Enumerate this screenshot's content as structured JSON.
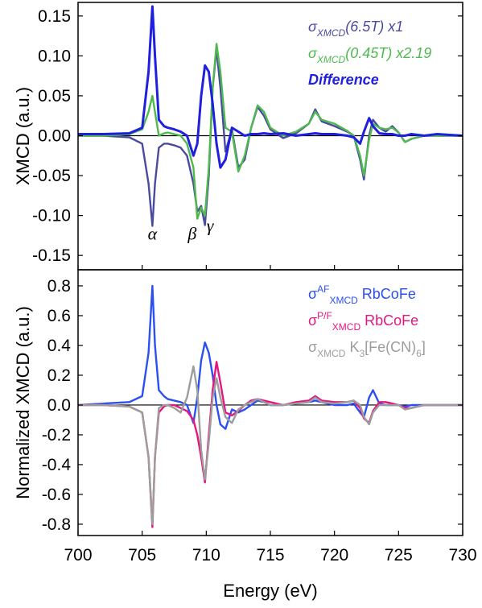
{
  "chart_data": [
    {
      "type": "line",
      "ylabel": "XMCD (a.u.)",
      "xlim": [
        700,
        730
      ],
      "xticks": [
        700,
        705,
        710,
        715,
        720,
        725,
        730
      ],
      "ylim": [
        -0.168,
        0.167
      ],
      "yticks": [
        0.15,
        {
          "value": 0.1,
          "label": "0.10"
        },
        0.05,
        {
          "value": 0,
          "label": "0.00"
        },
        -0.05,
        {
          "value": -0.1,
          "label": "-0.10"
        },
        -0.15
      ],
      "legend": "upper right",
      "legend_style": "italic",
      "x": [
        700,
        702,
        704,
        705,
        705.5,
        705.8,
        706,
        706.3,
        706.7,
        707,
        707.5,
        708,
        708.5,
        709,
        709.3,
        709.6,
        709.9,
        710.2,
        710.5,
        710.8,
        711.1,
        711.5,
        712,
        712.5,
        713,
        713.5,
        714,
        714.5,
        715,
        716,
        717,
        718,
        718.5,
        719,
        720,
        721,
        721.5,
        722,
        722.3,
        722.7,
        723,
        723.5,
        724,
        724.5,
        725,
        725.5,
        726,
        727,
        728,
        730
      ],
      "series": [
        {
          "name": [
            {
              "text": "σ"
            },
            {
              "text": "XMCD",
              "sub": true
            },
            {
              "text": "(6.5T) x1"
            }
          ],
          "color": "#4a4a9e",
          "values": [
            0,
            0,
            -0.002,
            -0.01,
            -0.06,
            -0.113,
            -0.06,
            -0.015,
            -0.01,
            -0.01,
            -0.012,
            -0.015,
            -0.025,
            -0.06,
            -0.095,
            -0.088,
            -0.112,
            -0.05,
            0.06,
            0.108,
            0.06,
            -0.02,
            0.008,
            -0.04,
            -0.03,
            0.01,
            0.036,
            0.025,
            0.008,
            -0.003,
            0.003,
            0.015,
            0.033,
            0.018,
            0.012,
            0.005,
            0.0,
            -0.03,
            -0.055,
            0.0,
            0.02,
            0.01,
            0.005,
            0.012,
            0.004,
            -0.008,
            -0.004,
            0,
            0,
            0
          ]
        },
        {
          "name": [
            {
              "text": "σ"
            },
            {
              "text": "XMCD",
              "sub": true
            },
            {
              "text": "(0.45T) x2.19"
            }
          ],
          "color": "#4fb94f",
          "values": [
            0,
            0,
            0.002,
            0.008,
            0.03,
            0.05,
            0.03,
            0.0,
            0.003,
            0.004,
            0.002,
            0.0,
            -0.01,
            -0.04,
            -0.104,
            -0.09,
            -0.1,
            -0.04,
            0.06,
            0.115,
            0.08,
            0.01,
            0.005,
            -0.045,
            -0.025,
            0.01,
            0.038,
            0.03,
            0.01,
            0.0,
            0.005,
            0.015,
            0.03,
            0.02,
            0.015,
            0.006,
            0.0,
            -0.025,
            -0.05,
            -0.005,
            0.015,
            0.01,
            0.008,
            0.01,
            0.004,
            -0.008,
            -0.004,
            0,
            0,
            0
          ]
        },
        {
          "name": [
            {
              "text": "Difference"
            }
          ],
          "color": "#1f1fe0",
          "bold": true,
          "values": [
            0.002,
            0.002,
            0.003,
            0.01,
            0.08,
            0.162,
            0.1,
            0.02,
            0.012,
            0.01,
            0.008,
            0.005,
            0.0,
            -0.025,
            -0.01,
            0.05,
            0.088,
            0.08,
            0.04,
            -0.01,
            -0.04,
            -0.03,
            0.01,
            0.005,
            0.0,
            0.002,
            0.002,
            0.003,
            0.002,
            0.003,
            0.0,
            0.002,
            0.003,
            0.002,
            0.002,
            0.0,
            -0.002,
            -0.01,
            0.005,
            0.022,
            0.012,
            0.003,
            0.002,
            0.002,
            0.0,
            0.0,
            0.002,
            0.0,
            0.002,
            0.0
          ]
        }
      ],
      "annotations": [
        {
          "text": "α",
          "x": 705.8,
          "y": -0.13
        },
        {
          "text": "β",
          "x": 708.9,
          "y": -0.13
        },
        {
          "text": "γ",
          "x": 710.3,
          "y": -0.12
        }
      ]
    },
    {
      "type": "line",
      "xlabel": "Energy (eV)",
      "ylabel": "Normalized XMCD (a.u.)",
      "xlim": [
        700,
        730
      ],
      "xticks": [
        700,
        705,
        710,
        715,
        720,
        725,
        730
      ],
      "ylim": [
        -0.876,
        0.908
      ],
      "yticks": [
        0.8,
        0.6,
        0.4,
        0.2,
        {
          "value": 0,
          "label": "0.0"
        },
        -0.2,
        -0.4,
        -0.6,
        -0.8
      ],
      "legend": "upper right",
      "x": [
        700,
        702,
        704,
        705,
        705.5,
        705.8,
        706,
        706.3,
        706.7,
        707,
        707.5,
        708,
        708.5,
        709,
        709.3,
        709.6,
        709.9,
        710.2,
        710.5,
        710.8,
        711.1,
        711.5,
        712,
        712.5,
        713,
        713.5,
        714,
        714.5,
        715,
        716,
        717,
        718,
        718.5,
        719,
        720,
        721,
        721.5,
        722,
        722.3,
        722.7,
        723,
        723.5,
        724,
        724.5,
        725,
        725.5,
        726,
        727,
        728,
        730
      ],
      "series": [
        {
          "name": [
            {
              "text": "σ"
            },
            {
              "text": "AF",
              "sup": true
            },
            {
              "text": "XMCD",
              "sub": true
            },
            {
              "text": " RbCoFe"
            }
          ],
          "color": "#2b4ff0",
          "values": [
            0.0,
            0.01,
            0.02,
            0.06,
            0.35,
            0.8,
            0.4,
            0.1,
            0.06,
            0.04,
            0.03,
            0.02,
            0.0,
            -0.12,
            0.05,
            0.3,
            0.42,
            0.35,
            0.2,
            0.0,
            -0.13,
            -0.16,
            -0.03,
            -0.05,
            -0.03,
            0.0,
            0.03,
            0.02,
            0.0,
            0.0,
            0.01,
            0.02,
            0.03,
            0.02,
            0.0,
            0.0,
            0.01,
            -0.05,
            -0.08,
            0.05,
            0.1,
            0.01,
            0.0,
            0.0,
            0.0,
            -0.01,
            0.0,
            0.0,
            0.0,
            0.0
          ]
        },
        {
          "name": [
            {
              "text": "σ"
            },
            {
              "text": "P/F",
              "sup": true
            },
            {
              "text": "XMCD",
              "sub": true
            },
            {
              "text": " RbCoFe"
            }
          ],
          "color": "#e5177f",
          "values": [
            0.0,
            0.0,
            -0.01,
            -0.05,
            -0.35,
            -0.82,
            -0.35,
            -0.05,
            -0.01,
            0.0,
            0.0,
            -0.02,
            -0.04,
            -0.1,
            -0.2,
            -0.35,
            -0.52,
            -0.2,
            0.1,
            0.29,
            0.15,
            -0.05,
            -0.07,
            -0.04,
            0.0,
            0.03,
            0.04,
            0.03,
            0.02,
            0.0,
            0.02,
            0.03,
            0.06,
            0.03,
            0.02,
            0.02,
            0.03,
            -0.02,
            -0.09,
            -0.12,
            -0.04,
            0.02,
            0.02,
            0.01,
            0.0,
            -0.02,
            -0.02,
            0.0,
            0.0,
            0.0
          ]
        },
        {
          "name": [
            {
              "text": "σ"
            },
            {
              "text": "XMCD",
              "sub": true
            },
            {
              "text": " K"
            },
            {
              "text": "3",
              "sub": true
            },
            {
              "text": "[Fe(CN)"
            },
            {
              "text": "6",
              "sub": true
            },
            {
              "text": "]"
            }
          ],
          "color": "#9d9d9d",
          "values": [
            0.0,
            0.0,
            -0.01,
            -0.05,
            -0.35,
            -0.8,
            -0.35,
            -0.02,
            0.0,
            0.0,
            -0.02,
            -0.05,
            0.05,
            0.26,
            0.1,
            -0.3,
            -0.5,
            -0.25,
            0.05,
            0.18,
            0.05,
            -0.08,
            -0.12,
            -0.03,
            0.0,
            0.02,
            0.04,
            0.02,
            0.0,
            0.0,
            0.01,
            0.02,
            0.05,
            0.02,
            0.01,
            0.02,
            0.03,
            0.0,
            -0.08,
            -0.13,
            -0.05,
            0.0,
            0.0,
            0.0,
            0.0,
            -0.03,
            -0.02,
            0.0,
            0.0,
            0.0
          ]
        }
      ]
    }
  ]
}
